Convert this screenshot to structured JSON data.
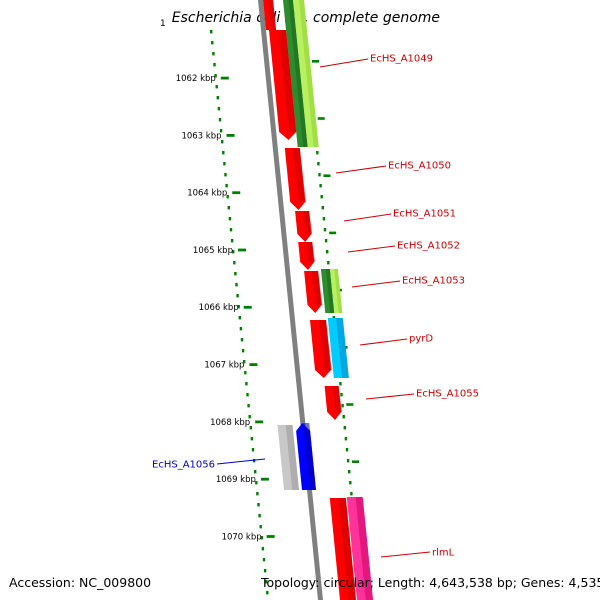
{
  "title": {
    "start_marker": "1",
    "text": "Escherichia coli HS, complete genome"
  },
  "footer": {
    "accession": "Accession: NC_009800",
    "topology": "Topology: circular; Length: 4,643,538 bp; Genes: 4,535"
  },
  "colors": {
    "ruler": "#008000",
    "backbone": "#808080",
    "forward_label": "#cc0000",
    "reverse_label": "#0000cc"
  },
  "ruler_ticks": [
    {
      "label": "1062 kbp"
    },
    {
      "label": "1063 kbp"
    },
    {
      "label": "1064 kbp"
    },
    {
      "label": "1065 kbp"
    },
    {
      "label": "1066 kbp"
    },
    {
      "label": "1067 kbp"
    },
    {
      "label": "1068 kbp"
    },
    {
      "label": "1069 kbp"
    },
    {
      "label": "1070 kbp"
    }
  ],
  "gene_labels": [
    {
      "name": "EcHS_A1049",
      "strand": "+"
    },
    {
      "name": "EcHS_A1050",
      "strand": "+"
    },
    {
      "name": "EcHS_A1051",
      "strand": "+"
    },
    {
      "name": "EcHS_A1052",
      "strand": "+"
    },
    {
      "name": "EcHS_A1053",
      "strand": "+"
    },
    {
      "name": "pyrD",
      "strand": "+"
    },
    {
      "name": "EcHS_A1055",
      "strand": "+"
    },
    {
      "name": "EcHS_A1056",
      "strand": "-"
    },
    {
      "name": "rlmL",
      "strand": "+"
    }
  ]
}
